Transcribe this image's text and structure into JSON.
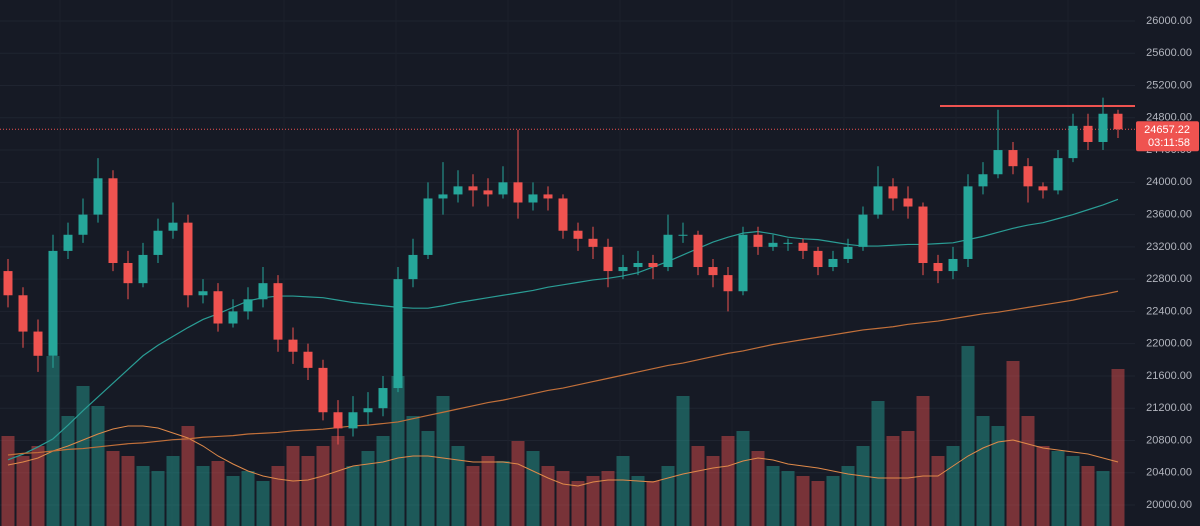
{
  "chart_data": {
    "type": "candlestick",
    "open": [
      22900,
      22600,
      22150,
      21850,
      23150,
      23350,
      23600,
      24050,
      23000,
      22750,
      23100,
      23400,
      23500,
      22600,
      22650,
      22250,
      22400,
      22550,
      22750,
      22050,
      21900,
      21700,
      21150,
      20950,
      21150,
      21200,
      21450,
      22800,
      23100,
      23800,
      23850,
      23950,
      23900,
      23850,
      24000,
      23750,
      23850,
      23800,
      23400,
      23300,
      23200,
      22900,
      22950,
      23000,
      22950,
      23350,
      23350,
      22950,
      22850,
      22650,
      23350,
      23200,
      23250,
      23250,
      23150,
      22950,
      23050,
      23200,
      23600,
      23950,
      23800,
      23700,
      23000,
      22900,
      23050,
      23950,
      24100,
      24400,
      24200,
      23950,
      23900,
      24300,
      24700,
      24500,
      24850
    ],
    "high": [
      23050,
      22700,
      22300,
      23350,
      23500,
      23800,
      24300,
      24150,
      23150,
      23250,
      23550,
      23750,
      23600,
      22800,
      22750,
      22550,
      22700,
      22950,
      22850,
      22200,
      22000,
      21800,
      21300,
      21350,
      21400,
      21600,
      22950,
      23300,
      24000,
      24250,
      24150,
      24100,
      24050,
      24200,
      24650,
      24000,
      23950,
      23850,
      23500,
      23450,
      23300,
      23100,
      23150,
      23100,
      23600,
      23500,
      23400,
      23050,
      22950,
      23450,
      23450,
      23350,
      23300,
      23300,
      23200,
      23150,
      23300,
      23700,
      24200,
      24050,
      23950,
      23750,
      23100,
      23200,
      24100,
      24250,
      24900,
      24500,
      24300,
      24000,
      24400,
      24850,
      24850,
      25050,
      24900
    ],
    "low": [
      22450,
      21950,
      21650,
      21700,
      23050,
      23250,
      23500,
      22900,
      22550,
      22700,
      23000,
      23300,
      22450,
      22500,
      22150,
      22200,
      22300,
      22450,
      21900,
      21750,
      21550,
      21050,
      20750,
      20850,
      21000,
      21100,
      21400,
      22700,
      23050,
      23600,
      23750,
      23700,
      23700,
      23800,
      23550,
      23650,
      23650,
      23300,
      23150,
      23050,
      22700,
      22800,
      22850,
      22800,
      22900,
      23250,
      22850,
      22700,
      22400,
      22600,
      23100,
      23150,
      23150,
      23050,
      22850,
      22900,
      23000,
      23150,
      23550,
      23650,
      23550,
      22850,
      22750,
      22800,
      22950,
      23850,
      24050,
      24100,
      23750,
      23800,
      23850,
      24250,
      24400,
      24400,
      24550
    ],
    "close": [
      22600,
      22150,
      21850,
      23150,
      23350,
      23600,
      24050,
      23000,
      22750,
      23100,
      23400,
      23500,
      22600,
      22650,
      22250,
      22400,
      22550,
      22750,
      22050,
      21900,
      21700,
      21150,
      20950,
      21150,
      21200,
      21450,
      22800,
      23100,
      23800,
      23850,
      23950,
      23900,
      23850,
      24000,
      23750,
      23850,
      23800,
      23400,
      23300,
      23200,
      22900,
      22950,
      23000,
      22950,
      23350,
      23350,
      22950,
      22850,
      22650,
      23350,
      23200,
      23250,
      23250,
      23150,
      22950,
      23050,
      23200,
      23600,
      23950,
      23800,
      23700,
      23000,
      22900,
      23050,
      23950,
      24100,
      24400,
      24200,
      23950,
      23900,
      24300,
      24700,
      24500,
      24850,
      24657.22
    ],
    "volume": [
      90,
      70,
      80,
      170,
      110,
      140,
      120,
      75,
      70,
      60,
      55,
      70,
      100,
      60,
      65,
      50,
      55,
      45,
      60,
      80,
      70,
      80,
      90,
      60,
      75,
      90,
      150,
      110,
      95,
      130,
      80,
      60,
      70,
      65,
      85,
      75,
      60,
      55,
      45,
      50,
      55,
      70,
      50,
      45,
      60,
      130,
      80,
      70,
      90,
      95,
      75,
      60,
      55,
      50,
      45,
      50,
      60,
      80,
      125,
      90,
      95,
      130,
      70,
      80,
      180,
      110,
      100,
      165,
      110,
      80,
      75,
      70,
      60,
      55,
      157
    ],
    "up_color": "#26a69a",
    "down_color": "#ef5350",
    "ma_lines": [
      {
        "color": "#2a9d95",
        "values": [
          20560,
          20630,
          20720,
          20820,
          20990,
          21170,
          21340,
          21510,
          21680,
          21850,
          21980,
          22090,
          22200,
          22300,
          22370,
          22450,
          22530,
          22570,
          22590,
          22590,
          22580,
          22570,
          22540,
          22510,
          22490,
          22470,
          22450,
          22440,
          22440,
          22470,
          22510,
          22540,
          22570,
          22600,
          22630,
          22660,
          22700,
          22730,
          22760,
          22790,
          22810,
          22840,
          22880,
          22950,
          23020,
          23100,
          23180,
          23260,
          23320,
          23370,
          23390,
          23360,
          23320,
          23300,
          23290,
          23260,
          23230,
          23210,
          23210,
          23220,
          23230,
          23230,
          23240,
          23250,
          23290,
          23330,
          23380,
          23430,
          23470,
          23500,
          23550,
          23600,
          23660,
          23720,
          23790
        ]
      },
      {
        "color": "#c2703a",
        "values": [
          20620,
          20640,
          20650,
          20670,
          20690,
          20700,
          20720,
          20740,
          20760,
          20770,
          20790,
          20810,
          20820,
          20840,
          20850,
          20860,
          20880,
          20890,
          20900,
          20920,
          20930,
          20940,
          20960,
          20980,
          20990,
          21010,
          21030,
          21070,
          21110,
          21150,
          21190,
          21230,
          21270,
          21300,
          21340,
          21380,
          21420,
          21450,
          21490,
          21530,
          21570,
          21610,
          21650,
          21690,
          21730,
          21760,
          21800,
          21840,
          21880,
          21910,
          21950,
          21990,
          22020,
          22050,
          22080,
          22110,
          22140,
          22170,
          22190,
          22210,
          22240,
          22260,
          22280,
          22310,
          22340,
          22370,
          22390,
          22420,
          22450,
          22480,
          22510,
          22540,
          22580,
          22610,
          22650
        ]
      }
    ],
    "volume_ma": {
      "color": "#e08a4a",
      "values": [
        61,
        64,
        68,
        75,
        80,
        86,
        92,
        97,
        100,
        100,
        98,
        93,
        88,
        80,
        70,
        62,
        55,
        50,
        47,
        45,
        46,
        50,
        55,
        60,
        62,
        64,
        68,
        70,
        70,
        68,
        66,
        64,
        64,
        64,
        62,
        55,
        48,
        42,
        40,
        44,
        46,
        46,
        45,
        44,
        48,
        52,
        55,
        58,
        60,
        65,
        68,
        66,
        62,
        60,
        58,
        55,
        52,
        50,
        48,
        48,
        48,
        50,
        50,
        60,
        70,
        78,
        84,
        86,
        82,
        78,
        76,
        74,
        72,
        68,
        64
      ]
    },
    "resistance": {
      "value": 24946,
      "color": "#ef5350"
    },
    "last_price": 24657.22,
    "countdown": "03:11:58",
    "ylim": [
      19740,
      26260
    ],
    "yticks": [
      {
        "value": 20000,
        "label": "20000.00"
      },
      {
        "value": 20400,
        "label": "20400.00"
      },
      {
        "value": 20800,
        "label": "20800.00"
      },
      {
        "value": 21200,
        "label": "21200.00"
      },
      {
        "value": 21600,
        "label": "21600.00"
      },
      {
        "value": 22000,
        "label": "22000.00"
      },
      {
        "value": 22400,
        "label": "22400.00"
      },
      {
        "value": 22800,
        "label": "22800.00"
      },
      {
        "value": 23200,
        "label": "23200.00"
      },
      {
        "value": 23600,
        "label": "23600.00"
      },
      {
        "value": 24000,
        "label": "24000.00"
      },
      {
        "value": 24400,
        "label": "24400.00"
      },
      {
        "value": 24800,
        "label": "24800.00"
      },
      {
        "value": 25200,
        "label": "25200.00"
      },
      {
        "value": 25600,
        "label": "25600.00"
      },
      {
        "value": 26000,
        "label": "26000.00"
      }
    ],
    "grid": true
  }
}
